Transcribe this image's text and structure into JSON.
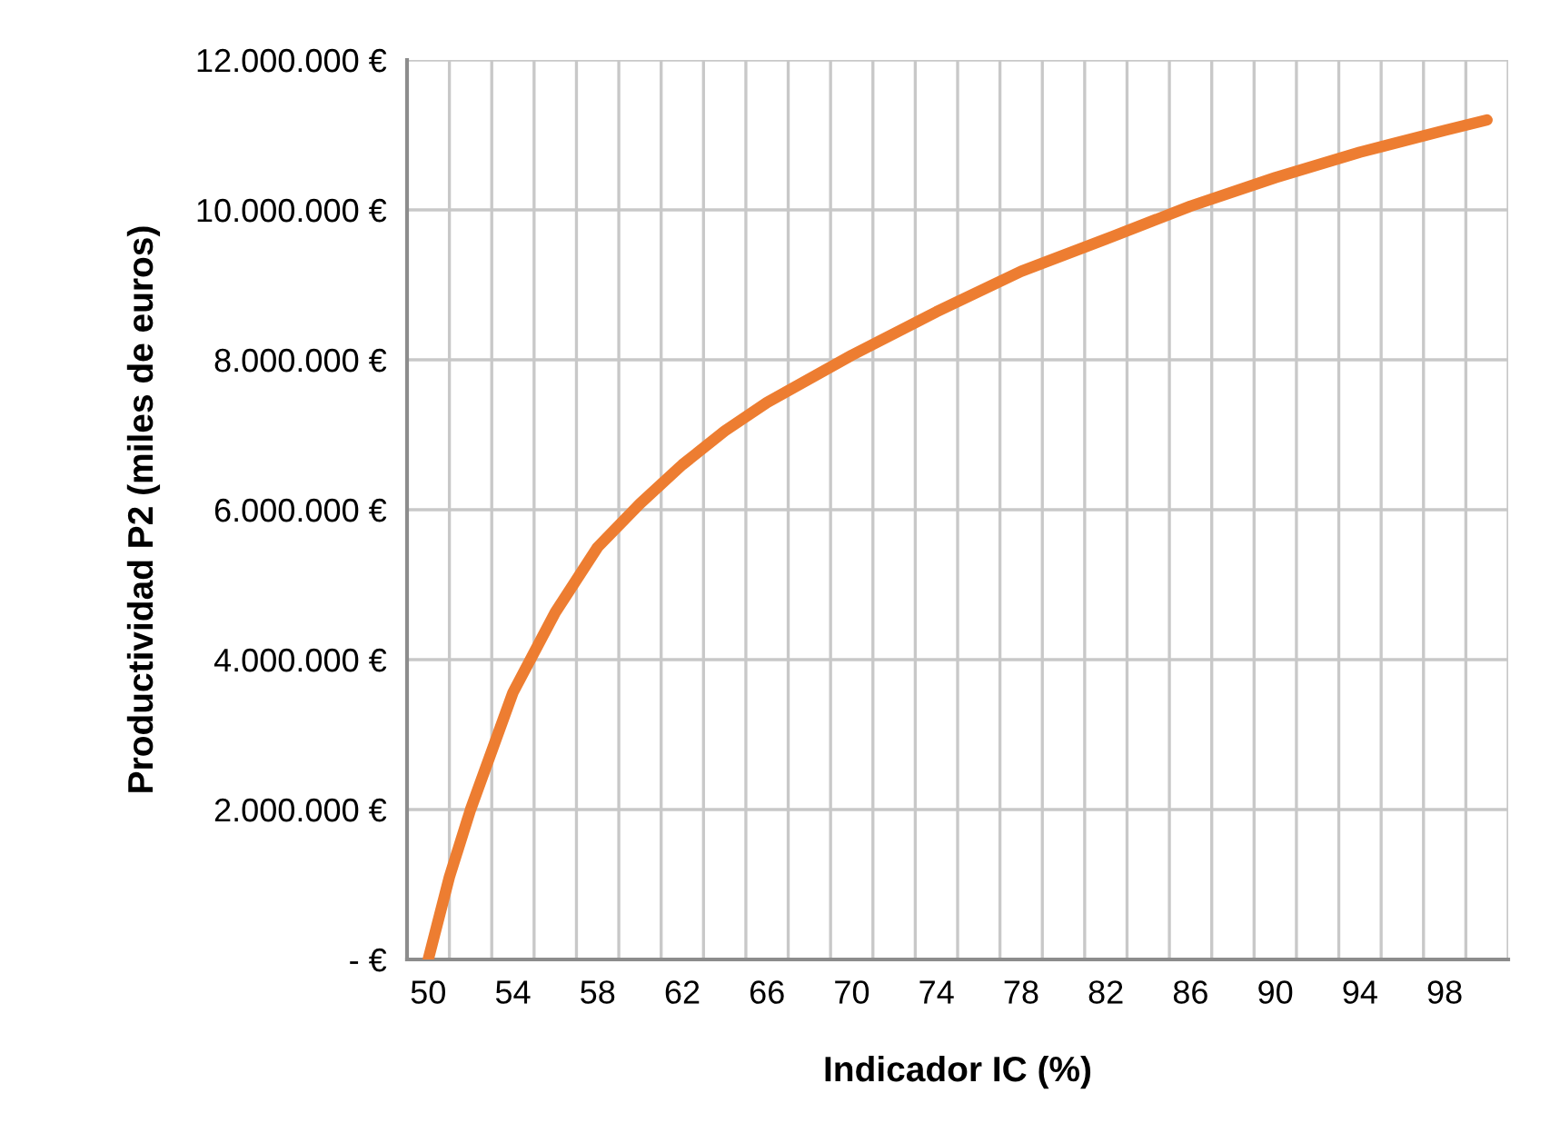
{
  "chart_data": {
    "type": "line",
    "xlabel": "Indicador IC (%)",
    "ylabel": "Productividad P2 (miles de euros)",
    "series": [
      {
        "color": "#ed7d31",
        "x": [
          50,
          51,
          52,
          54,
          56,
          58,
          60,
          62,
          64,
          66,
          70,
          74,
          78,
          82,
          86,
          90,
          94,
          98,
          100
        ],
        "values": [
          0,
          1100000,
          2000000,
          3560000,
          4630000,
          5500000,
          6080000,
          6600000,
          7050000,
          7430000,
          8060000,
          8640000,
          9180000,
          9610000,
          10050000,
          10430000,
          10770000,
          11060000,
          11200000
        ]
      }
    ],
    "xlim": [
      49,
      101
    ],
    "xticks": [
      {
        "value": 49,
        "label": null
      },
      {
        "value": 50,
        "label": "50"
      },
      {
        "value": 51,
        "label": null
      },
      {
        "value": 53,
        "label": null
      },
      {
        "value": 54,
        "label": "54"
      },
      {
        "value": 55,
        "label": null
      },
      {
        "value": 57,
        "label": null
      },
      {
        "value": 58,
        "label": "58"
      },
      {
        "value": 59,
        "label": null
      },
      {
        "value": 61,
        "label": null
      },
      {
        "value": 62,
        "label": "62"
      },
      {
        "value": 63,
        "label": null
      },
      {
        "value": 65,
        "label": null
      },
      {
        "value": 66,
        "label": "66"
      },
      {
        "value": 67,
        "label": null
      },
      {
        "value": 69,
        "label": null
      },
      {
        "value": 70,
        "label": "70"
      },
      {
        "value": 71,
        "label": null
      },
      {
        "value": 73,
        "label": null
      },
      {
        "value": 74,
        "label": "74"
      },
      {
        "value": 75,
        "label": null
      },
      {
        "value": 77,
        "label": null
      },
      {
        "value": 78,
        "label": "78"
      },
      {
        "value": 79,
        "label": null
      },
      {
        "value": 81,
        "label": null
      },
      {
        "value": 82,
        "label": "82"
      },
      {
        "value": 83,
        "label": null
      },
      {
        "value": 85,
        "label": null
      },
      {
        "value": 86,
        "label": "86"
      },
      {
        "value": 87,
        "label": null
      },
      {
        "value": 89,
        "label": null
      },
      {
        "value": 90,
        "label": "90"
      },
      {
        "value": 91,
        "label": null
      },
      {
        "value": 93,
        "label": null
      },
      {
        "value": 94,
        "label": "94"
      },
      {
        "value": 95,
        "label": null
      },
      {
        "value": 97,
        "label": null
      },
      {
        "value": 98,
        "label": "98"
      },
      {
        "value": 99,
        "label": null
      },
      {
        "value": 101,
        "label": null
      }
    ],
    "ylim": [
      0,
      12000000
    ],
    "yticks": [
      {
        "value": 0,
        "label": "- €"
      },
      {
        "value": 2000000,
        "label": "2.000.000 €"
      },
      {
        "value": 4000000,
        "label": "4.000.000 €"
      },
      {
        "value": 6000000,
        "label": "6.000.000 €"
      },
      {
        "value": 8000000,
        "label": "8.000.000 €"
      },
      {
        "value": 10000000,
        "label": "10.000.000 €"
      },
      {
        "value": 12000000,
        "label": "12.000.000 €"
      }
    ],
    "grid": true,
    "marker": "none",
    "line_style": "solid"
  }
}
